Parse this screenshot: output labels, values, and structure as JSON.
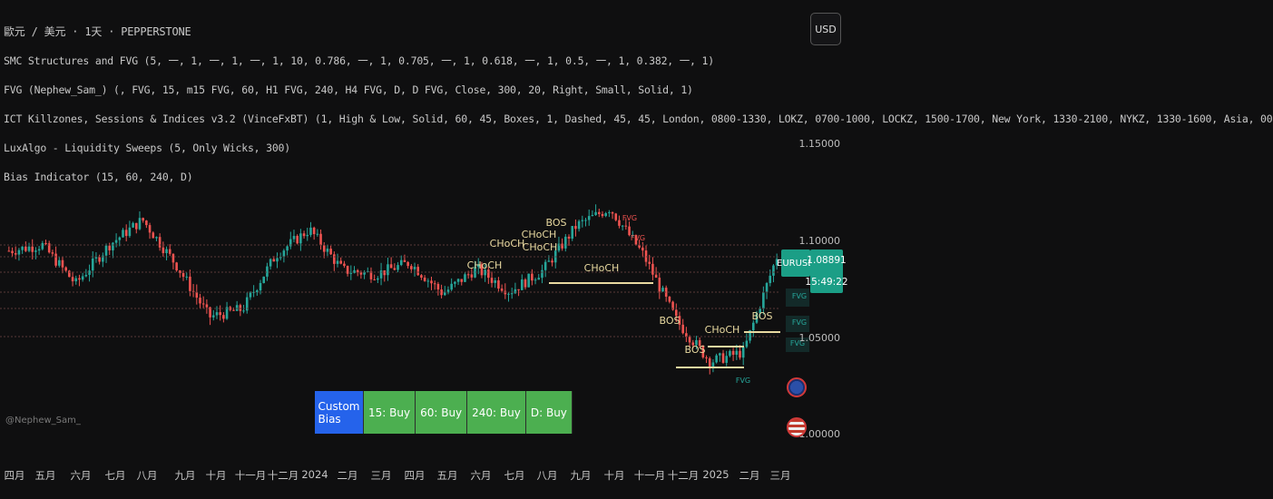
{
  "header": {
    "symbol_line": "歐元 / 美元 · 1天 · PEPPERSTONE",
    "currency_button": "USD"
  },
  "indicators": [
    "SMC Structures and FVG (5, 一, 1, 一, 1, 一, 1, 10, 0.786, 一, 1, 0.705, 一, 1, 0.618, 一, 1, 0.5, 一, 1, 0.382, 一, 1)",
    "FVG (Nephew_Sam_) (, FVG, 15, m15 FVG, 60, H1 FVG, 240, H4 FVG, D, D FVG, Close, 300, 20, Right, Small, Solid, 1)",
    "ICT Killzones, Sessions & Indices v3.2 (VinceFxBT) (1, High & Low, Solid, 60, 45, Boxes, 1, Dashed, 45, 45, London, 0800-1330, LOKZ, 0700-1000, LOCKZ, 1500-1700, New York, 1330-2100, NYKZ, 1330-1600, Asia, 00",
    "LuxAlgo - Liquidity Sweeps (5, Only Wicks, 300)",
    "Bias Indicator (15, 60, 240, D)"
  ],
  "price_axis": [
    "1.15000",
    "1.10000",
    "1.05000",
    "1.00000"
  ],
  "current": {
    "symbol": "EURUSD",
    "price": "1.08891",
    "countdown": "15:49:22"
  },
  "bias_table": {
    "title": "Custom Bias",
    "cells": [
      "15: Buy",
      "60: Buy",
      "240: Buy",
      "D: Buy"
    ]
  },
  "watermark": "@Nephew_Sam_",
  "x_axis": [
    "四月",
    "五月",
    "六月",
    "七月",
    "八月",
    "九月",
    "十月",
    "十一月",
    "十二月",
    "2024",
    "二月",
    "三月",
    "四月",
    "五月",
    "六月",
    "七月",
    "八月",
    "九月",
    "十月",
    "十一月",
    "十二月",
    "2025",
    "二月",
    "三月"
  ],
  "structure_labels": [
    "CHoCH",
    "CHoCH",
    "CHoCH",
    "CHoCH",
    "BOS",
    "CHoCH",
    "BOS",
    "BOS",
    "CHoCH",
    "BOS"
  ],
  "fvg_labels": [
    "FVG",
    "FVG",
    "FVG",
    "FVG",
    "FVG",
    "FVG"
  ],
  "colors": {
    "up": "#26a69a",
    "down": "#ef5350",
    "bias_blue": "#2563eb",
    "bias_green": "#4caf50",
    "structure": "#e8d9a0",
    "background": "#0f0f10"
  },
  "chart_data": {
    "type": "candlestick",
    "title": "歐元 / 美元 · 1天 · PEPPERSTONE",
    "ylim": [
      0.99,
      1.165
    ],
    "y_ticks": [
      1.15,
      1.1,
      1.05,
      1.0
    ],
    "x": [
      "2023-04",
      "2023-05",
      "2023-06",
      "2023-07",
      "2023-08",
      "2023-09",
      "2023-10",
      "2023-11",
      "2023-12",
      "2024-01",
      "2024-02",
      "2024-03",
      "2024-04",
      "2024-05",
      "2024-06",
      "2024-07",
      "2024-08",
      "2024-09",
      "2024-10",
      "2024-11",
      "2024-12",
      "2025-01",
      "2025-02",
      "2025-03"
    ],
    "close": [
      1.092,
      1.095,
      1.075,
      1.095,
      1.108,
      1.085,
      1.058,
      1.062,
      1.09,
      1.103,
      1.082,
      1.08,
      1.086,
      1.07,
      1.083,
      1.071,
      1.082,
      1.105,
      1.114,
      1.09,
      1.056,
      1.035,
      1.04,
      1.089
    ],
    "grid": false
  }
}
